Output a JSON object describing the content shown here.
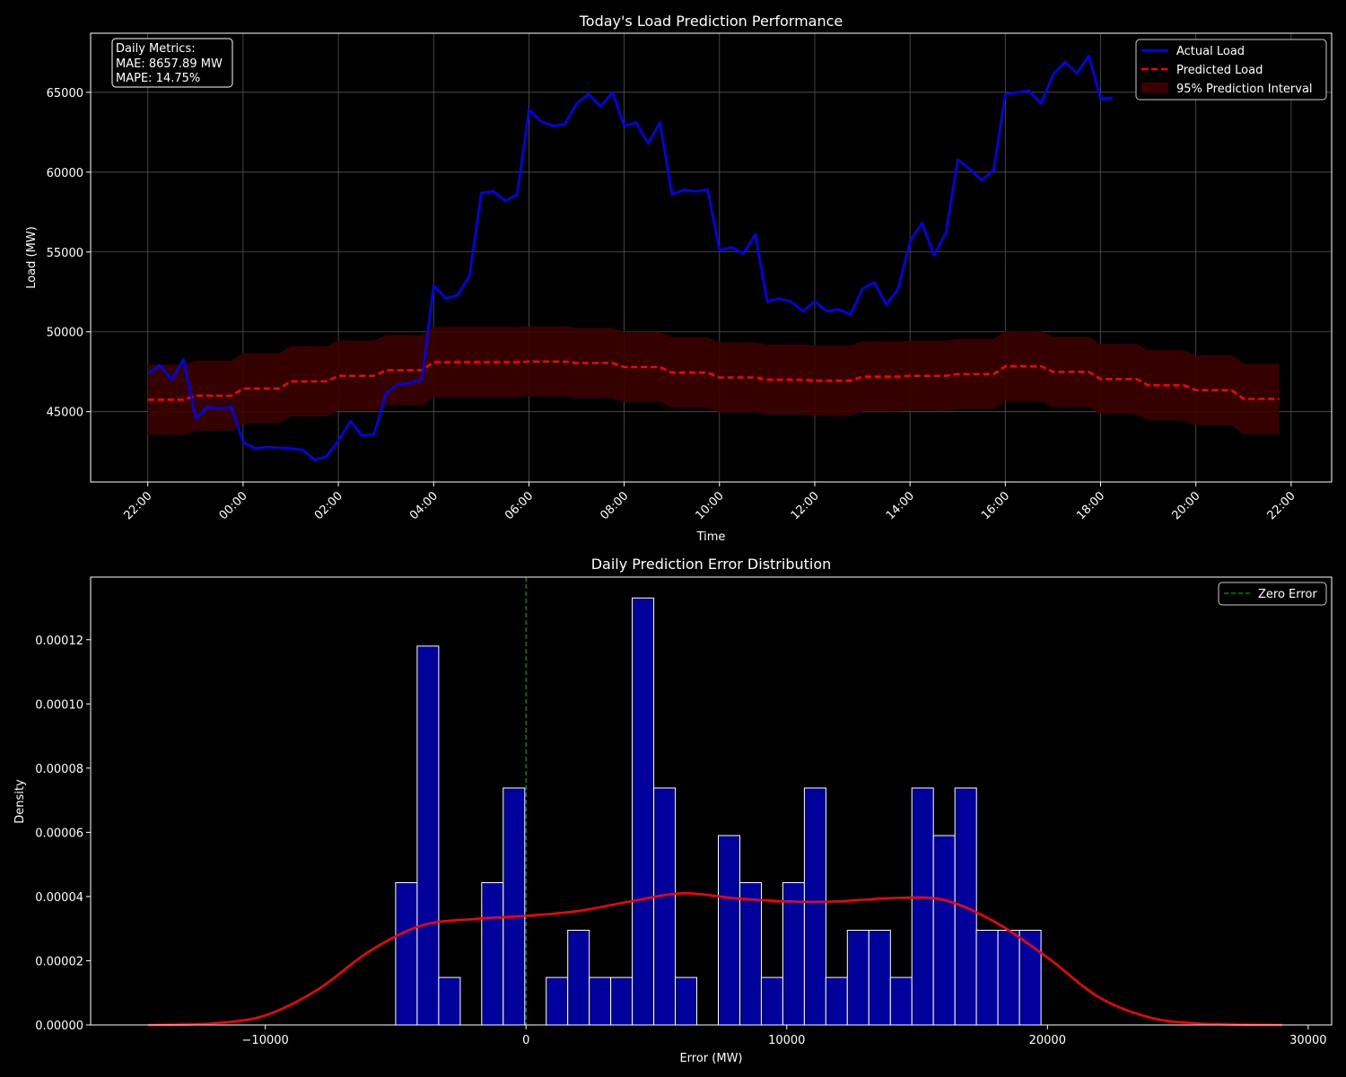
{
  "chart_data": [
    {
      "type": "line",
      "title": "Today's Load Prediction Performance",
      "xlabel": "Time",
      "ylabel": "Load (MW)",
      "x_tick_labels": [
        "22:00",
        "00:00",
        "02:00",
        "04:00",
        "06:00",
        "08:00",
        "10:00",
        "12:00",
        "14:00",
        "16:00",
        "18:00",
        "20:00",
        "22:00"
      ],
      "x_tick_hours": [
        0,
        2,
        4,
        6,
        8,
        10,
        12,
        14,
        16,
        18,
        20,
        22,
        24
      ],
      "xlim_hours": [
        -1.2,
        24.85
      ],
      "y_ticks": [
        45000,
        50000,
        55000,
        60000,
        65000
      ],
      "ylim": [
        40600,
        68700
      ],
      "grid": true,
      "legend": {
        "position": "top-right",
        "entries": [
          "Actual Load",
          "Predicted Load",
          "95% Prediction Interval"
        ]
      },
      "annotation": {
        "position": "top-left",
        "lines": [
          "Daily Metrics:",
          "MAE: 8657.89 MW",
          "MAPE: 14.75%"
        ]
      },
      "colors": {
        "actual": "#0000ff",
        "predicted": "#ff0000",
        "interval": "#3a0000",
        "grid": "#555555"
      },
      "series": [
        {
          "name": "Actual Load",
          "x_hours": [
            0,
            0.25,
            0.5,
            0.75,
            1,
            1.25,
            1.5,
            1.75,
            2,
            2.25,
            2.5,
            2.75,
            3,
            3.25,
            3.5,
            3.75,
            4,
            4.25,
            4.5,
            4.75,
            5,
            5.25,
            5.5,
            5.75,
            6,
            6.25,
            6.5,
            6.75,
            7,
            7.25,
            7.5,
            7.75,
            8,
            8.25,
            8.5,
            8.75,
            9,
            9.25,
            9.5,
            9.75,
            10,
            10.25,
            10.5,
            10.75,
            11,
            11.25,
            11.5,
            11.75,
            12,
            12.25,
            12.5,
            12.75,
            13,
            13.25,
            13.5,
            13.75,
            14,
            14.25,
            14.5,
            14.75,
            15,
            15.25,
            15.5,
            15.75,
            16,
            16.25,
            16.5,
            16.75,
            17,
            17.25,
            17.5,
            17.75,
            18,
            18.25,
            18.5,
            18.75,
            19,
            19.25,
            19.5,
            19.75,
            20,
            20.25
          ],
          "values": [
            47400,
            47900,
            47000,
            48300,
            44600,
            45300,
            45200,
            45300,
            43100,
            42700,
            42800,
            42750,
            42700,
            42600,
            42000,
            42200,
            43200,
            44400,
            43500,
            43600,
            46200,
            46700,
            46800,
            47000,
            52900,
            52100,
            52300,
            53500,
            58700,
            58800,
            58200,
            58600,
            63900,
            63200,
            62900,
            63000,
            64300,
            64900,
            64100,
            65000,
            62900,
            63100,
            61800,
            63100,
            58600,
            58900,
            58800,
            58900,
            55100,
            55300,
            54900,
            56100,
            51900,
            52100,
            51900,
            51300,
            51900,
            51300,
            51400,
            51100,
            52700,
            53100,
            51700,
            52700,
            55700,
            56800,
            54800,
            56200,
            60800,
            60200,
            59500,
            60100,
            64900,
            65000,
            65100,
            64300,
            66100,
            66900,
            66200,
            67300,
            64600,
            64650
          ]
        },
        {
          "name": "Predicted Load",
          "x_hours": [
            0,
            0.25,
            0.5,
            0.75,
            1,
            1.25,
            1.5,
            1.75,
            2,
            2.25,
            2.5,
            2.75,
            3,
            3.25,
            3.5,
            3.75,
            4,
            4.25,
            4.5,
            4.75,
            5,
            5.25,
            5.5,
            5.75,
            6,
            6.25,
            6.5,
            6.75,
            7,
            7.25,
            7.5,
            7.75,
            8,
            8.25,
            8.5,
            8.75,
            9,
            9.25,
            9.5,
            9.75,
            10,
            10.25,
            10.5,
            10.75,
            11,
            11.25,
            11.5,
            11.75,
            12,
            12.25,
            12.5,
            12.75,
            13,
            13.25,
            13.5,
            13.75,
            14,
            14.25,
            14.5,
            14.75,
            15,
            15.25,
            15.5,
            15.75,
            16,
            16.25,
            16.5,
            16.75,
            17,
            17.25,
            17.5,
            17.75,
            18,
            18.25,
            18.5,
            18.75,
            19,
            19.25,
            19.5,
            19.75,
            20,
            20.25,
            20.5,
            20.75,
            21,
            21.25,
            21.5,
            21.75,
            22,
            22.25,
            22.5,
            22.75,
            23,
            23.25,
            23.5,
            23.75
          ],
          "values": [
            45750,
            45750,
            45750,
            45750,
            46000,
            46000,
            46000,
            46000,
            46450,
            46450,
            46450,
            46450,
            46900,
            46900,
            46900,
            46900,
            47250,
            47250,
            47250,
            47250,
            47600,
            47600,
            47600,
            47600,
            48100,
            48100,
            48100,
            48100,
            48100,
            48100,
            48100,
            48100,
            48150,
            48150,
            48150,
            48150,
            48050,
            48050,
            48050,
            48050,
            47800,
            47800,
            47800,
            47800,
            47450,
            47450,
            47450,
            47450,
            47150,
            47150,
            47150,
            47150,
            47000,
            47000,
            47000,
            47000,
            46950,
            46950,
            46950,
            46950,
            47200,
            47200,
            47200,
            47200,
            47250,
            47250,
            47250,
            47250,
            47350,
            47350,
            47350,
            47350,
            47850,
            47850,
            47850,
            47850,
            47500,
            47500,
            47500,
            47500,
            47050,
            47050,
            47050,
            47050,
            46650,
            46650,
            46650,
            46650,
            46350,
            46350,
            46350,
            46350,
            45800,
            45800,
            45800,
            45800
          ]
        },
        {
          "name": "95% Prediction Interval",
          "half_width": 2200
        }
      ]
    },
    {
      "type": "bar",
      "title": "Daily Prediction Error Distribution",
      "xlabel": "Error (MW)",
      "ylabel": "Density",
      "x_ticks": [
        -10000,
        0,
        10000,
        20000,
        30000
      ],
      "x_tick_labels": [
        "−10000",
        "0",
        "10000",
        "20000",
        "30000"
      ],
      "y_ticks": [
        0,
        2e-05,
        4e-05,
        6e-05,
        8e-05,
        0.0001,
        0.00012
      ],
      "y_tick_labels": [
        "0.00000",
        "0.00002",
        "0.00004",
        "0.00006",
        "0.00008",
        "0.00010",
        "0.00012"
      ],
      "xlim": [
        -16700,
        30900
      ],
      "ylim": [
        0,
        0.0001395
      ],
      "grid": false,
      "legend": {
        "position": "top-right",
        "entries": [
          "Zero Error"
        ]
      },
      "colors": {
        "bars": "#00009a",
        "bar_edge": "#ffffff",
        "kde": "#ff0000",
        "zero_line": "#008000"
      },
      "histogram": {
        "bin_edges": [
          -5000,
          -4175,
          -3350,
          -2525,
          -1700,
          -875,
          -50,
          775,
          1600,
          2425,
          3250,
          4075,
          4900,
          5725,
          6550,
          7375,
          8200,
          9025,
          9850,
          10675,
          11500,
          12325,
          13150,
          13975,
          14800,
          15625,
          16450,
          17275,
          18100,
          18925,
          19750
        ],
        "values": [
          4.43e-05,
          0.000118,
          1.48e-05,
          0,
          4.43e-05,
          7.38e-05,
          0,
          1.48e-05,
          2.95e-05,
          1.48e-05,
          1.48e-05,
          0.000133,
          7.38e-05,
          1.48e-05,
          0,
          5.9e-05,
          4.43e-05,
          1.48e-05,
          4.43e-05,
          7.38e-05,
          1.48e-05,
          2.95e-05,
          2.95e-05,
          1.48e-05,
          7.38e-05,
          5.9e-05,
          7.38e-05,
          2.95e-05,
          2.95e-05,
          2.95e-05
        ]
      },
      "zero_line_x": 0,
      "kde": {
        "x": [
          -14500,
          -12000,
          -10000,
          -8000,
          -6000,
          -4000,
          -2000,
          0,
          2000,
          4000,
          6000,
          8000,
          10000,
          12000,
          14000,
          16000,
          18000,
          20000,
          22000,
          24000,
          26000,
          29000
        ],
        "values": [
          0,
          5e-07,
          3e-06,
          1.1e-05,
          2.3e-05,
          3.1e-05,
          3.3e-05,
          3.4e-05,
          3.55e-05,
          3.85e-05,
          4.1e-05,
          3.95e-05,
          3.85e-05,
          3.85e-05,
          3.95e-05,
          3.9e-05,
          3.2e-05,
          2.1e-05,
          8.5e-06,
          2.2e-06,
          4e-07,
          0
        ]
      }
    }
  ]
}
